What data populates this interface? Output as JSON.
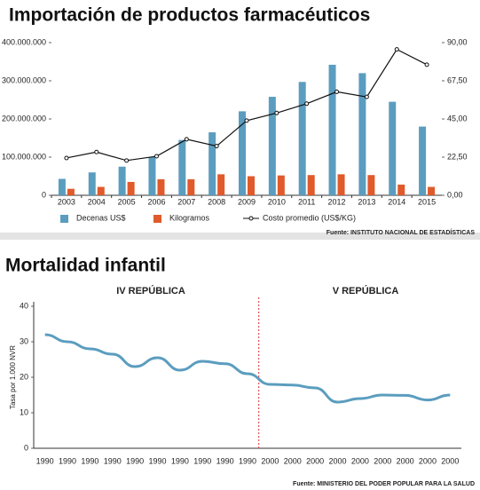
{
  "chart_data": [
    {
      "type": "bar",
      "title": "Importación de productos farmacéuticos",
      "categories": [
        "2003",
        "2004",
        "2005",
        "2006",
        "2007",
        "2008",
        "2009",
        "2010",
        "2011",
        "2012",
        "2013",
        "2014",
        "2015"
      ],
      "series": [
        {
          "name": "Decenas US$",
          "color": "#5b9dbf",
          "values": [
            43000000,
            60000000,
            75000000,
            100000000,
            145000000,
            165000000,
            220000000,
            258000000,
            297000000,
            342000000,
            320000000,
            245000000,
            180000000
          ]
        },
        {
          "name": "Kilogramos",
          "color": "#e05a2b",
          "values": [
            17000000,
            22000000,
            35000000,
            42000000,
            42000000,
            55000000,
            50000000,
            52000000,
            53000000,
            55000000,
            53000000,
            28000000,
            22000000
          ]
        },
        {
          "name": "Costo promedio (US$/KG)",
          "color": "#111111",
          "type": "line",
          "axis": "y2",
          "values": [
            22,
            25.5,
            20.5,
            23,
            33,
            29,
            44,
            48.5,
            54,
            61,
            58,
            86,
            77
          ]
        }
      ],
      "ylim": [
        0,
        400000000
      ],
      "yticks": [
        0,
        {
          "value": 100000000,
          "label": "100.000.000"
        },
        {
          "value": 200000000,
          "label": "200.000.000"
        },
        {
          "value": 300000000,
          "label": "300.000.000"
        },
        {
          "value": 400000000,
          "label": "400.000.000"
        }
      ],
      "y2lim": [
        0,
        90
      ],
      "y2ticks": [
        {
          "value": 0,
          "label": "0,00"
        },
        {
          "value": 22.5,
          "label": "22,50"
        },
        {
          "value": 45,
          "label": "45,00"
        },
        {
          "value": 67.5,
          "label": "67,50"
        },
        {
          "value": 90,
          "label": "90,00"
        }
      ],
      "grid": false,
      "source": "Fuente: INSTITUTO NACIONAL DE ESTADÍSTICAS"
    },
    {
      "type": "line",
      "title": "Mortalidad infantil",
      "categories": [
        "1990",
        "1990",
        "1990",
        "1990",
        "1990",
        "1990",
        "1990",
        "1990",
        "1990",
        "1990",
        "2000",
        "2000",
        "2000",
        "2000",
        "2000",
        "2000",
        "2000",
        "2000",
        "2000"
      ],
      "series": [
        {
          "name": "Tasa",
          "color": "#5b9dbf",
          "values": [
            32,
            30,
            28,
            26.5,
            23,
            25.5,
            22,
            24.5,
            23.8,
            21,
            18,
            17.8,
            17,
            13,
            14,
            15,
            14.9,
            13.6,
            15
          ]
        }
      ],
      "ylim": [
        0,
        40
      ],
      "yticks": [
        0,
        10,
        20,
        30,
        40
      ],
      "ylabel": "Tasa por 1.000 NVR",
      "annotations": [
        "IV REPÚBLICA",
        "V REPÚBLICA"
      ],
      "grid": false,
      "source": "Fuente: MINISTERIO DEL PODER POPULAR PARA LA SALUD"
    }
  ]
}
